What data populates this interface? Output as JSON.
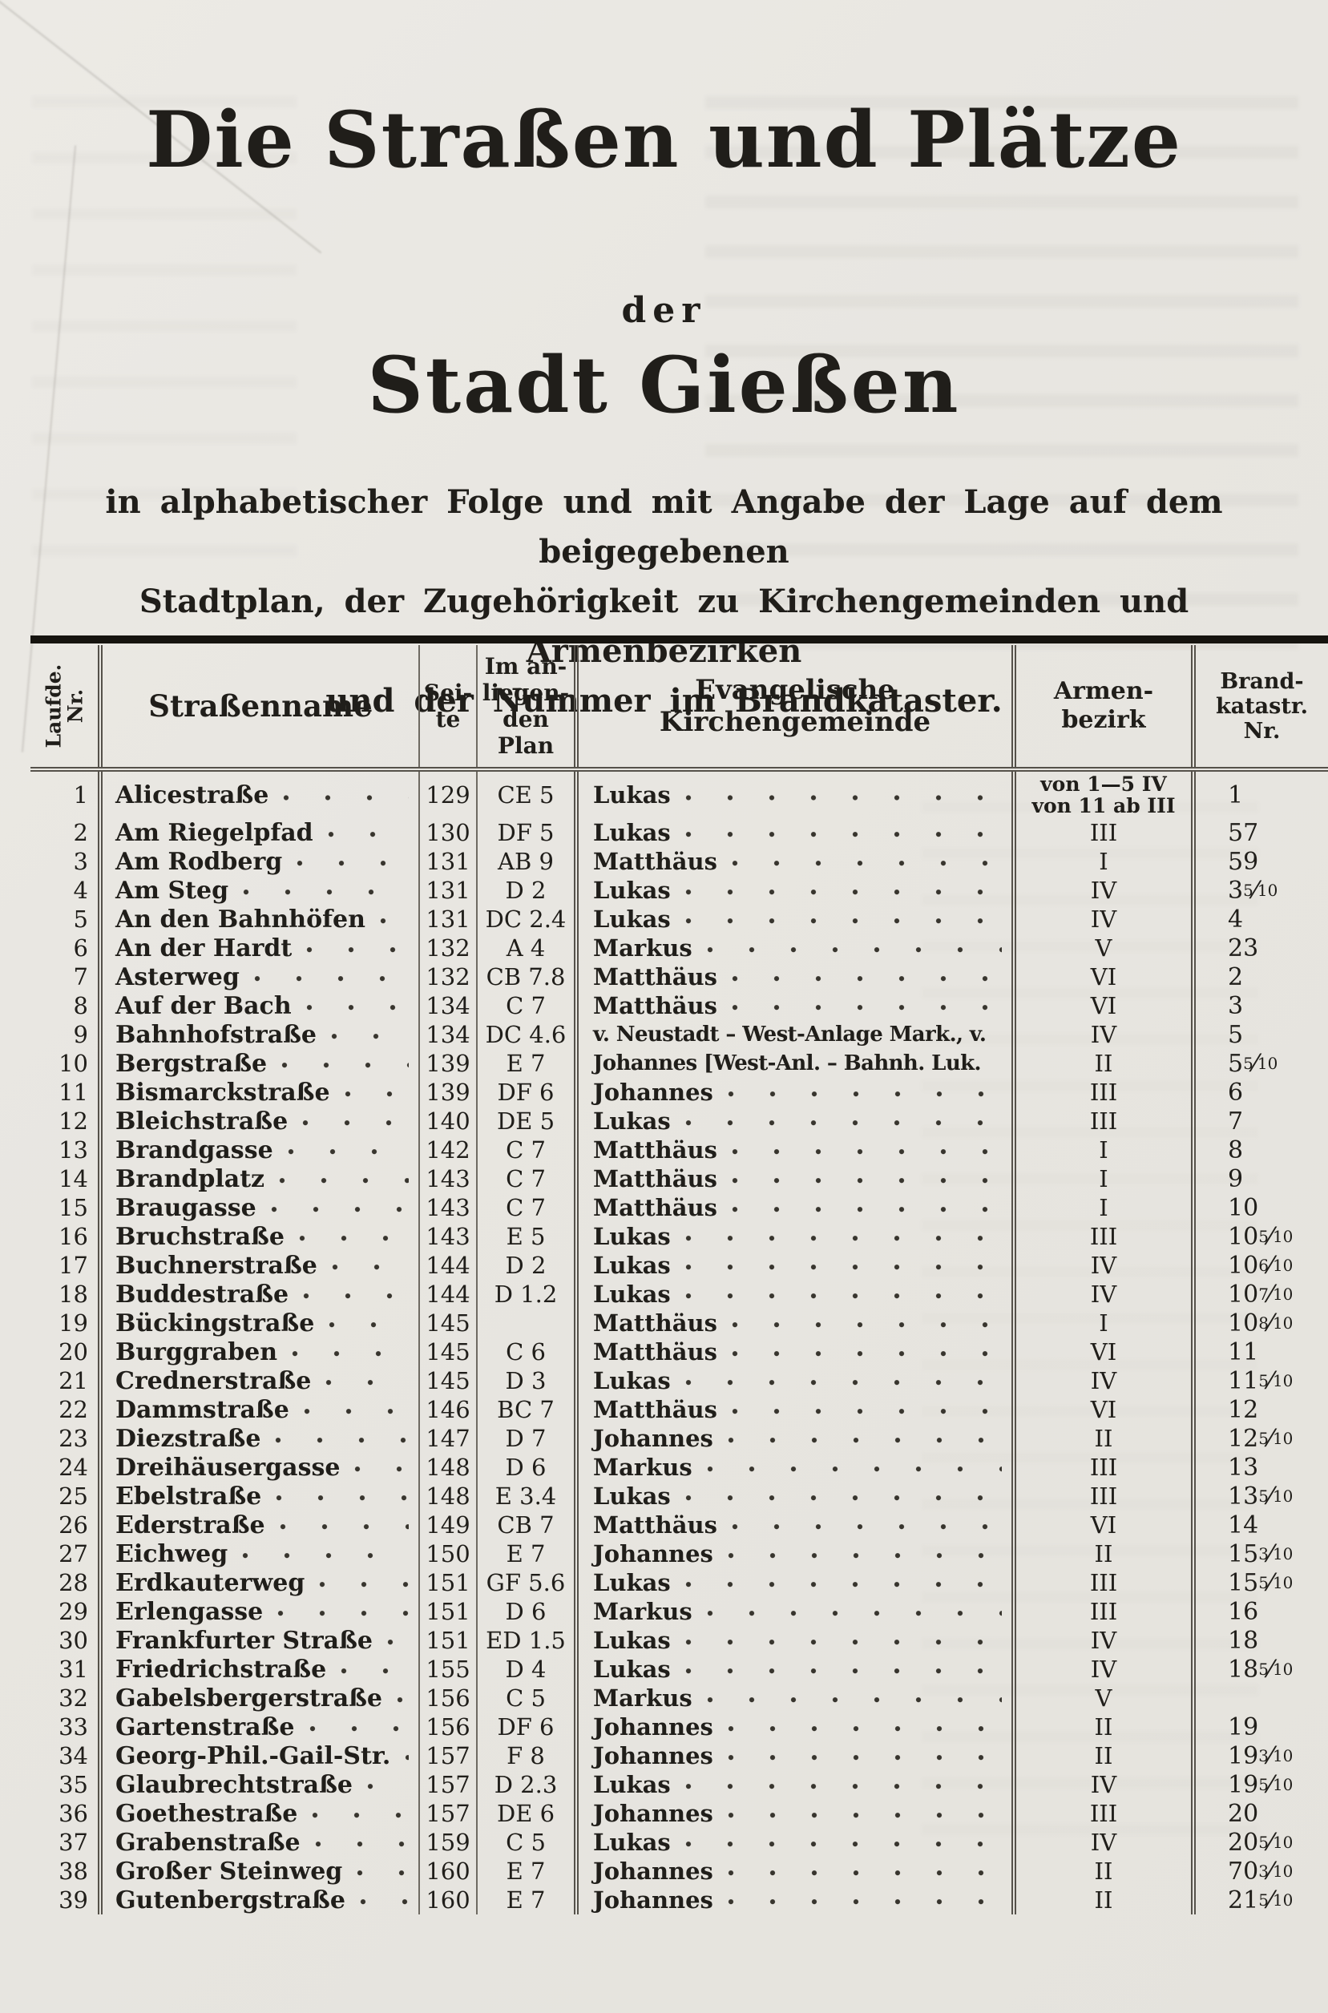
{
  "colors": {
    "paper": "#e8e6e1",
    "ink": "#201e1a",
    "rule_gray": "#55514a",
    "bar_black": "#16140f"
  },
  "header": {
    "title_line1": "Die Straßen und Plätze",
    "title_line2": "der",
    "title_line3": "Stadt Gießen",
    "subtitle_lines": "in alphabetischer Folge und mit Angabe der Lage auf dem beigegebenen\nStadtplan, der Zugehörigkeit zu Kirchengemeinden und Armenbezirken\nund der Nummer im Brandkataster."
  },
  "table": {
    "headers": {
      "nr": "Laufde.\nNr.",
      "name": "Straßenname",
      "seite": "Sei-\nte",
      "plan": "Im an-\nliegen-\nden\nPlan",
      "kirche": "Evangelische Kirchengemeinde",
      "armen": "Armen-\nbezirk",
      "brand": "Brand-\nkatastr.\nNr."
    },
    "rows": [
      {
        "nr": "1",
        "name": "Alicestraße",
        "seite": "129",
        "plan": "CE 5",
        "kirche": "Lukas",
        "armen": "von 1—5 IV\nvon 11 ab III",
        "brand": "1",
        "tall": true
      },
      {
        "nr": "2",
        "name": "Am Riegelpfad",
        "seite": "130",
        "plan": "DF 5",
        "kirche": "Lukas",
        "armen": "III",
        "brand": "57"
      },
      {
        "nr": "3",
        "name": "Am Rodberg",
        "seite": "131",
        "plan": "AB 9",
        "kirche": "Matthäus",
        "armen": "I",
        "brand": "59"
      },
      {
        "nr": "4",
        "name": "Am Steg",
        "seite": "131",
        "plan": "D 2",
        "kirche": "Lukas",
        "armen": "IV",
        "brand": "3",
        "frac": "5/10"
      },
      {
        "nr": "5",
        "name": "An den Bahnhöfen",
        "seite": "131",
        "plan": "DC 2.4",
        "kirche": "Lukas",
        "armen": "IV",
        "brand": "4"
      },
      {
        "nr": "6",
        "name": "An der Hardt",
        "seite": "132",
        "plan": "A 4",
        "kirche": "Markus",
        "armen": "V",
        "brand": "23"
      },
      {
        "nr": "7",
        "name": "Asterweg",
        "seite": "132",
        "plan": "CB 7.8",
        "kirche": "Matthäus",
        "armen": "VI",
        "brand": "2"
      },
      {
        "nr": "8",
        "name": "Auf der Bach",
        "seite": "134",
        "plan": "C 7",
        "kirche": "Matthäus",
        "armen": "VI",
        "brand": "3"
      },
      {
        "nr": "9",
        "name": "Bahnhofstraße",
        "seite": "134",
        "plan": "DC 4.6",
        "kirche": "v. Neustadt – West-Anlage Mark., v.",
        "kirche_dots": false,
        "armen": "IV",
        "brand": "5"
      },
      {
        "nr": "10",
        "name": "Bergstraße",
        "seite": "139",
        "plan": "E 7",
        "kirche": "Johannes [West-Anl. – Bahnh. Luk.",
        "kirche_dots": false,
        "armen": "II",
        "brand": "5",
        "frac": "5/10"
      },
      {
        "nr": "11",
        "name": "Bismarckstraße",
        "seite": "139",
        "plan": "DF 6",
        "kirche": "Johannes",
        "armen": "III",
        "brand": "6"
      },
      {
        "nr": "12",
        "name": "Bleichstraße",
        "seite": "140",
        "plan": "DE 5",
        "kirche": "Lukas",
        "armen": "III",
        "brand": "7"
      },
      {
        "nr": "13",
        "name": "Brandgasse",
        "seite": "142",
        "plan": "C 7",
        "kirche": "Matthäus",
        "armen": "I",
        "brand": "8"
      },
      {
        "nr": "14",
        "name": "Brandplatz",
        "seite": "143",
        "plan": "C 7",
        "kirche": "Matthäus",
        "armen": "I",
        "brand": "9"
      },
      {
        "nr": "15",
        "name": "Braugasse",
        "seite": "143",
        "plan": "C 7",
        "kirche": "Matthäus",
        "armen": "I",
        "brand": "10"
      },
      {
        "nr": "16",
        "name": "Bruchstraße",
        "seite": "143",
        "plan": "E 5",
        "kirche": "Lukas",
        "armen": "III",
        "brand": "10",
        "frac": "5/10"
      },
      {
        "nr": "17",
        "name": "Buchnerstraße",
        "seite": "144",
        "plan": "D 2",
        "kirche": "Lukas",
        "armen": "IV",
        "brand": "10",
        "frac": "6/10"
      },
      {
        "nr": "18",
        "name": "Buddestraße",
        "seite": "144",
        "plan": "D 1.2",
        "kirche": "Lukas",
        "armen": "IV",
        "brand": "10",
        "frac": "7/10"
      },
      {
        "nr": "19",
        "name": "Bückingstraße",
        "seite": "145",
        "plan": "",
        "kirche": "Matthäus",
        "armen": "I",
        "brand": "10",
        "frac": "8/10"
      },
      {
        "nr": "20",
        "name": "Burggraben",
        "seite": "145",
        "plan": "C 6",
        "kirche": "Matthäus",
        "armen": "VI",
        "brand": "11"
      },
      {
        "nr": "21",
        "name": "Crednerstraße",
        "seite": "145",
        "plan": "D 3",
        "kirche": "Lukas",
        "armen": "IV",
        "brand": "11",
        "frac": "5/10"
      },
      {
        "nr": "22",
        "name": "Dammstraße",
        "seite": "146",
        "plan": "BC 7",
        "kirche": "Matthäus",
        "armen": "VI",
        "brand": "12"
      },
      {
        "nr": "23",
        "name": "Diezstraße",
        "seite": "147",
        "plan": "D 7",
        "kirche": "Johannes",
        "armen": "II",
        "brand": "12",
        "frac": "5/10"
      },
      {
        "nr": "24",
        "name": "Dreihäusergasse",
        "seite": "148",
        "plan": "D 6",
        "kirche": "Markus",
        "armen": "III",
        "brand": "13"
      },
      {
        "nr": "25",
        "name": "Ebelstraße",
        "seite": "148",
        "plan": "E 3.4",
        "kirche": "Lukas",
        "armen": "III",
        "brand": "13",
        "frac": "5/10"
      },
      {
        "nr": "26",
        "name": "Ederstraße",
        "seite": "149",
        "plan": "CB 7",
        "kirche": "Matthäus",
        "armen": "VI",
        "brand": "14"
      },
      {
        "nr": "27",
        "name": "Eichweg",
        "seite": "150",
        "plan": "E 7",
        "kirche": "Johannes",
        "armen": "II",
        "brand": "15",
        "frac": "3/10"
      },
      {
        "nr": "28",
        "name": "Erdkauterweg",
        "seite": "151",
        "plan": "GF 5.6",
        "kirche": "Lukas",
        "armen": "III",
        "brand": "15",
        "frac": "5/10"
      },
      {
        "nr": "29",
        "name": "Erlengasse",
        "seite": "151",
        "plan": "D 6",
        "kirche": "Markus",
        "armen": "III",
        "brand": "16"
      },
      {
        "nr": "30",
        "name": "Frankfurter Straße",
        "seite": "151",
        "plan": "ED 1.5",
        "kirche": "Lukas",
        "armen": "IV",
        "brand": "18"
      },
      {
        "nr": "31",
        "name": "Friedrichstraße",
        "seite": "155",
        "plan": "D 4",
        "kirche": "Lukas",
        "armen": "IV",
        "brand": "18",
        "frac": "5/10"
      },
      {
        "nr": "32",
        "name": "Gabelsbergerstraße",
        "seite": "156",
        "plan": "C 5",
        "kirche": "Markus",
        "armen": "V",
        "brand": ""
      },
      {
        "nr": "33",
        "name": "Gartenstraße",
        "seite": "156",
        "plan": "DF 6",
        "kirche": "Johannes",
        "armen": "II",
        "brand": "19"
      },
      {
        "nr": "34",
        "name": "Georg-Phil.-Gail-Str.",
        "seite": "157",
        "plan": "F 8",
        "kirche": "Johannes",
        "armen": "II",
        "brand": "19",
        "frac": "3/10"
      },
      {
        "nr": "35",
        "name": "Glaubrechtstraße",
        "seite": "157",
        "plan": "D 2.3",
        "kirche": "Lukas",
        "armen": "IV",
        "brand": "19",
        "frac": "5/10"
      },
      {
        "nr": "36",
        "name": "Goethestraße",
        "seite": "157",
        "plan": "DE 6",
        "kirche": "Johannes",
        "armen": "III",
        "brand": "20"
      },
      {
        "nr": "37",
        "name": "Grabenstraße",
        "seite": "159",
        "plan": "C 5",
        "kirche": "Lukas",
        "armen": "IV",
        "brand": "20",
        "frac": "5/10"
      },
      {
        "nr": "38",
        "name": "Großer Steinweg",
        "seite": "160",
        "plan": "E 7",
        "kirche": "Johannes",
        "armen": "II",
        "brand": "70",
        "frac": "3/10"
      },
      {
        "nr": "39",
        "name": "Gutenbergstraße",
        "seite": "160",
        "plan": "E 7",
        "kirche": "Johannes",
        "armen": "II",
        "brand": "21",
        "frac": "5/10"
      }
    ]
  }
}
